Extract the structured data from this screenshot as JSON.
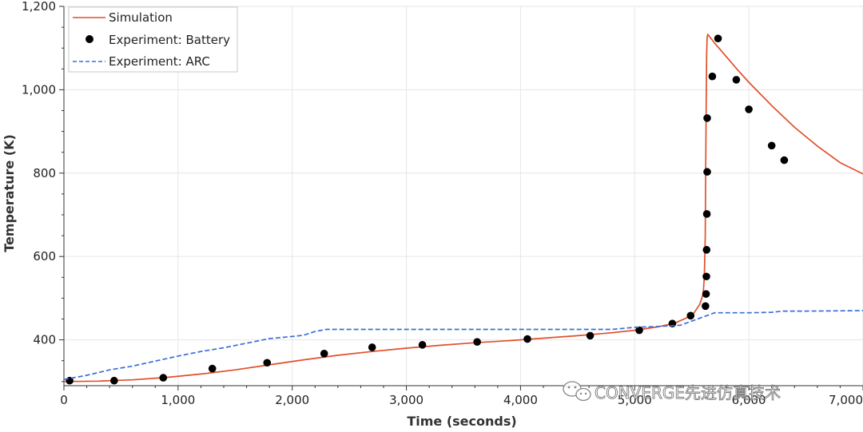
{
  "chart_data": {
    "type": "line",
    "title": "",
    "xlabel": "Time (seconds)",
    "ylabel": "Temperature (K)",
    "xlim": [
      0,
      7000
    ],
    "ylim": [
      290,
      1200
    ],
    "xticks": [
      0,
      1000,
      2000,
      3000,
      4000,
      5000,
      6000,
      7000
    ],
    "xtick_labels": [
      "0",
      "1,000",
      "2,000",
      "3,000",
      "4,000",
      "5,000",
      "6,000",
      "7,000"
    ],
    "yticks": [
      400,
      600,
      800,
      1000,
      1200
    ],
    "ytick_labels": [
      "400",
      "600",
      "800",
      "1,000",
      "1,200"
    ],
    "grid": true,
    "legend_position": "top-left",
    "series": [
      {
        "name": "Simulation",
        "style": "solid-line",
        "color": "#e0502a",
        "x": [
          0,
          300,
          600,
          900,
          1200,
          1500,
          1800,
          2100,
          2400,
          2700,
          3000,
          3300,
          3600,
          3900,
          4200,
          4500,
          4800,
          5000,
          5200,
          5350,
          5450,
          5520,
          5570,
          5600,
          5610,
          5618,
          5622,
          5626,
          5630,
          5634,
          5640,
          5700,
          5800,
          5900,
          6000,
          6200,
          6400,
          6600,
          6800,
          7000
        ],
        "y": [
          300,
          301,
          304,
          310,
          318,
          328,
          340,
          352,
          363,
          372,
          380,
          387,
          393,
          398,
          404,
          410,
          417,
          423,
          431,
          440,
          452,
          465,
          485,
          510,
          550,
          650,
          800,
          950,
          1080,
          1125,
          1133,
          1112,
          1080,
          1048,
          1018,
          962,
          910,
          865,
          825,
          798
        ]
      },
      {
        "name": "Experiment:  Battery",
        "style": "markers",
        "color": "#000000",
        "x": [
          50,
          440,
          870,
          1300,
          1780,
          2280,
          2700,
          3140,
          3620,
          4060,
          4610,
          5040,
          5330,
          5490,
          5620,
          5625,
          5628,
          5630,
          5632,
          5635,
          5635,
          5680,
          5730,
          5890,
          6000,
          6200,
          6310
        ],
        "y": [
          302,
          302,
          309,
          331,
          345,
          367,
          382,
          388,
          395,
          402,
          410,
          423,
          439,
          458,
          481,
          510,
          552,
          616,
          702,
          803,
          932,
          1032,
          1123,
          1024,
          953,
          866,
          831
        ]
      },
      {
        "name": "Experiment:  ARC",
        "style": "dashed-line",
        "color": "#3a6fd8",
        "x": [
          0,
          200,
          400,
          600,
          800,
          1000,
          1200,
          1400,
          1600,
          1800,
          2000,
          2100,
          2200,
          2300,
          2500,
          3000,
          3500,
          4000,
          4500,
          4800,
          5000,
          5200,
          5400,
          5500,
          5600,
          5700,
          6000,
          6200,
          6300,
          6500,
          7000
        ],
        "y": [
          305,
          315,
          328,
          337,
          349,
          361,
          372,
          381,
          392,
          403,
          408,
          411,
          420,
          425,
          425,
          425,
          425,
          425,
          425,
          425,
          430,
          432,
          435,
          445,
          455,
          465,
          465,
          466,
          469,
          469,
          470
        ]
      }
    ]
  },
  "legend": {
    "entries": [
      "Simulation",
      "Experiment:  Battery",
      "Experiment:  ARC"
    ]
  },
  "watermark": {
    "text": "CONVERGE先进仿真技术",
    "icon": "wechat-icon"
  }
}
